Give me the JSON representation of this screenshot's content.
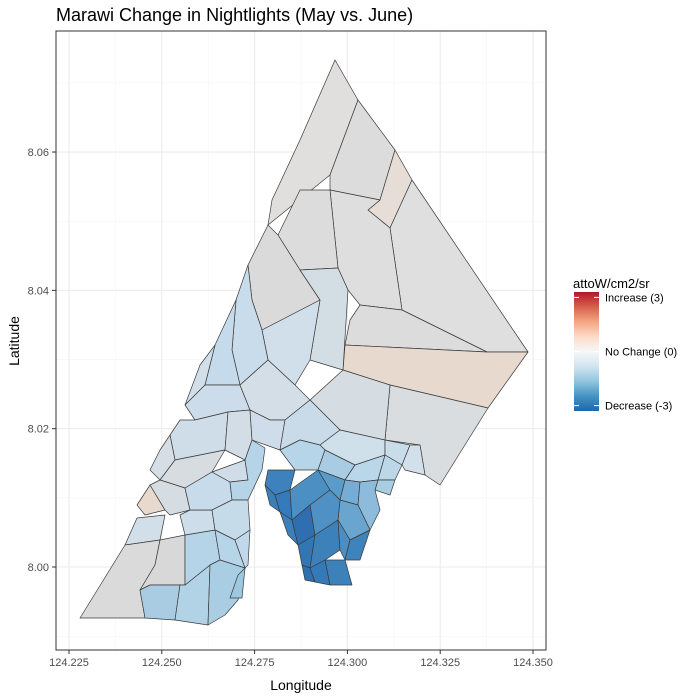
{
  "title": "Marawi Change in Nightlights (May vs. June)",
  "axes": {
    "xlabel": "Longitude",
    "ylabel": "Latitude",
    "x_ticks": [
      "124.225",
      "124.250",
      "124.275",
      "124.300",
      "124.325",
      "124.350"
    ],
    "y_ticks": [
      "8.00",
      "8.02",
      "8.04",
      "8.06"
    ],
    "x_tick_values": [
      124.225,
      124.25,
      124.275,
      124.3,
      124.325,
      124.35
    ],
    "y_tick_values": [
      8.0,
      8.02,
      8.04,
      8.06
    ],
    "xlim": [
      124.2215,
      124.3535
    ],
    "ylim": [
      7.988,
      8.0775
    ]
  },
  "grid": true,
  "legend": {
    "title": "attoW/cm2/sr",
    "placement": "right",
    "labels": [
      "Increase (3)",
      "No Change (0)",
      "Decrease (-3)"
    ],
    "values": [
      3,
      0,
      -3
    ],
    "range": [
      -3.3,
      3.3
    ],
    "colors": [
      "#2166ac",
      "#4393c3",
      "#92c5de",
      "#d1e5f0",
      "#f7f7f7",
      "#fddbc7",
      "#f4a582",
      "#d6604d",
      "#b2182b"
    ]
  },
  "colors": {
    "grid_major": "#ebebeb",
    "grid_minor": "#f5f5f5",
    "panel_border": "#333333",
    "district_border": "#3a3a3a"
  }
}
